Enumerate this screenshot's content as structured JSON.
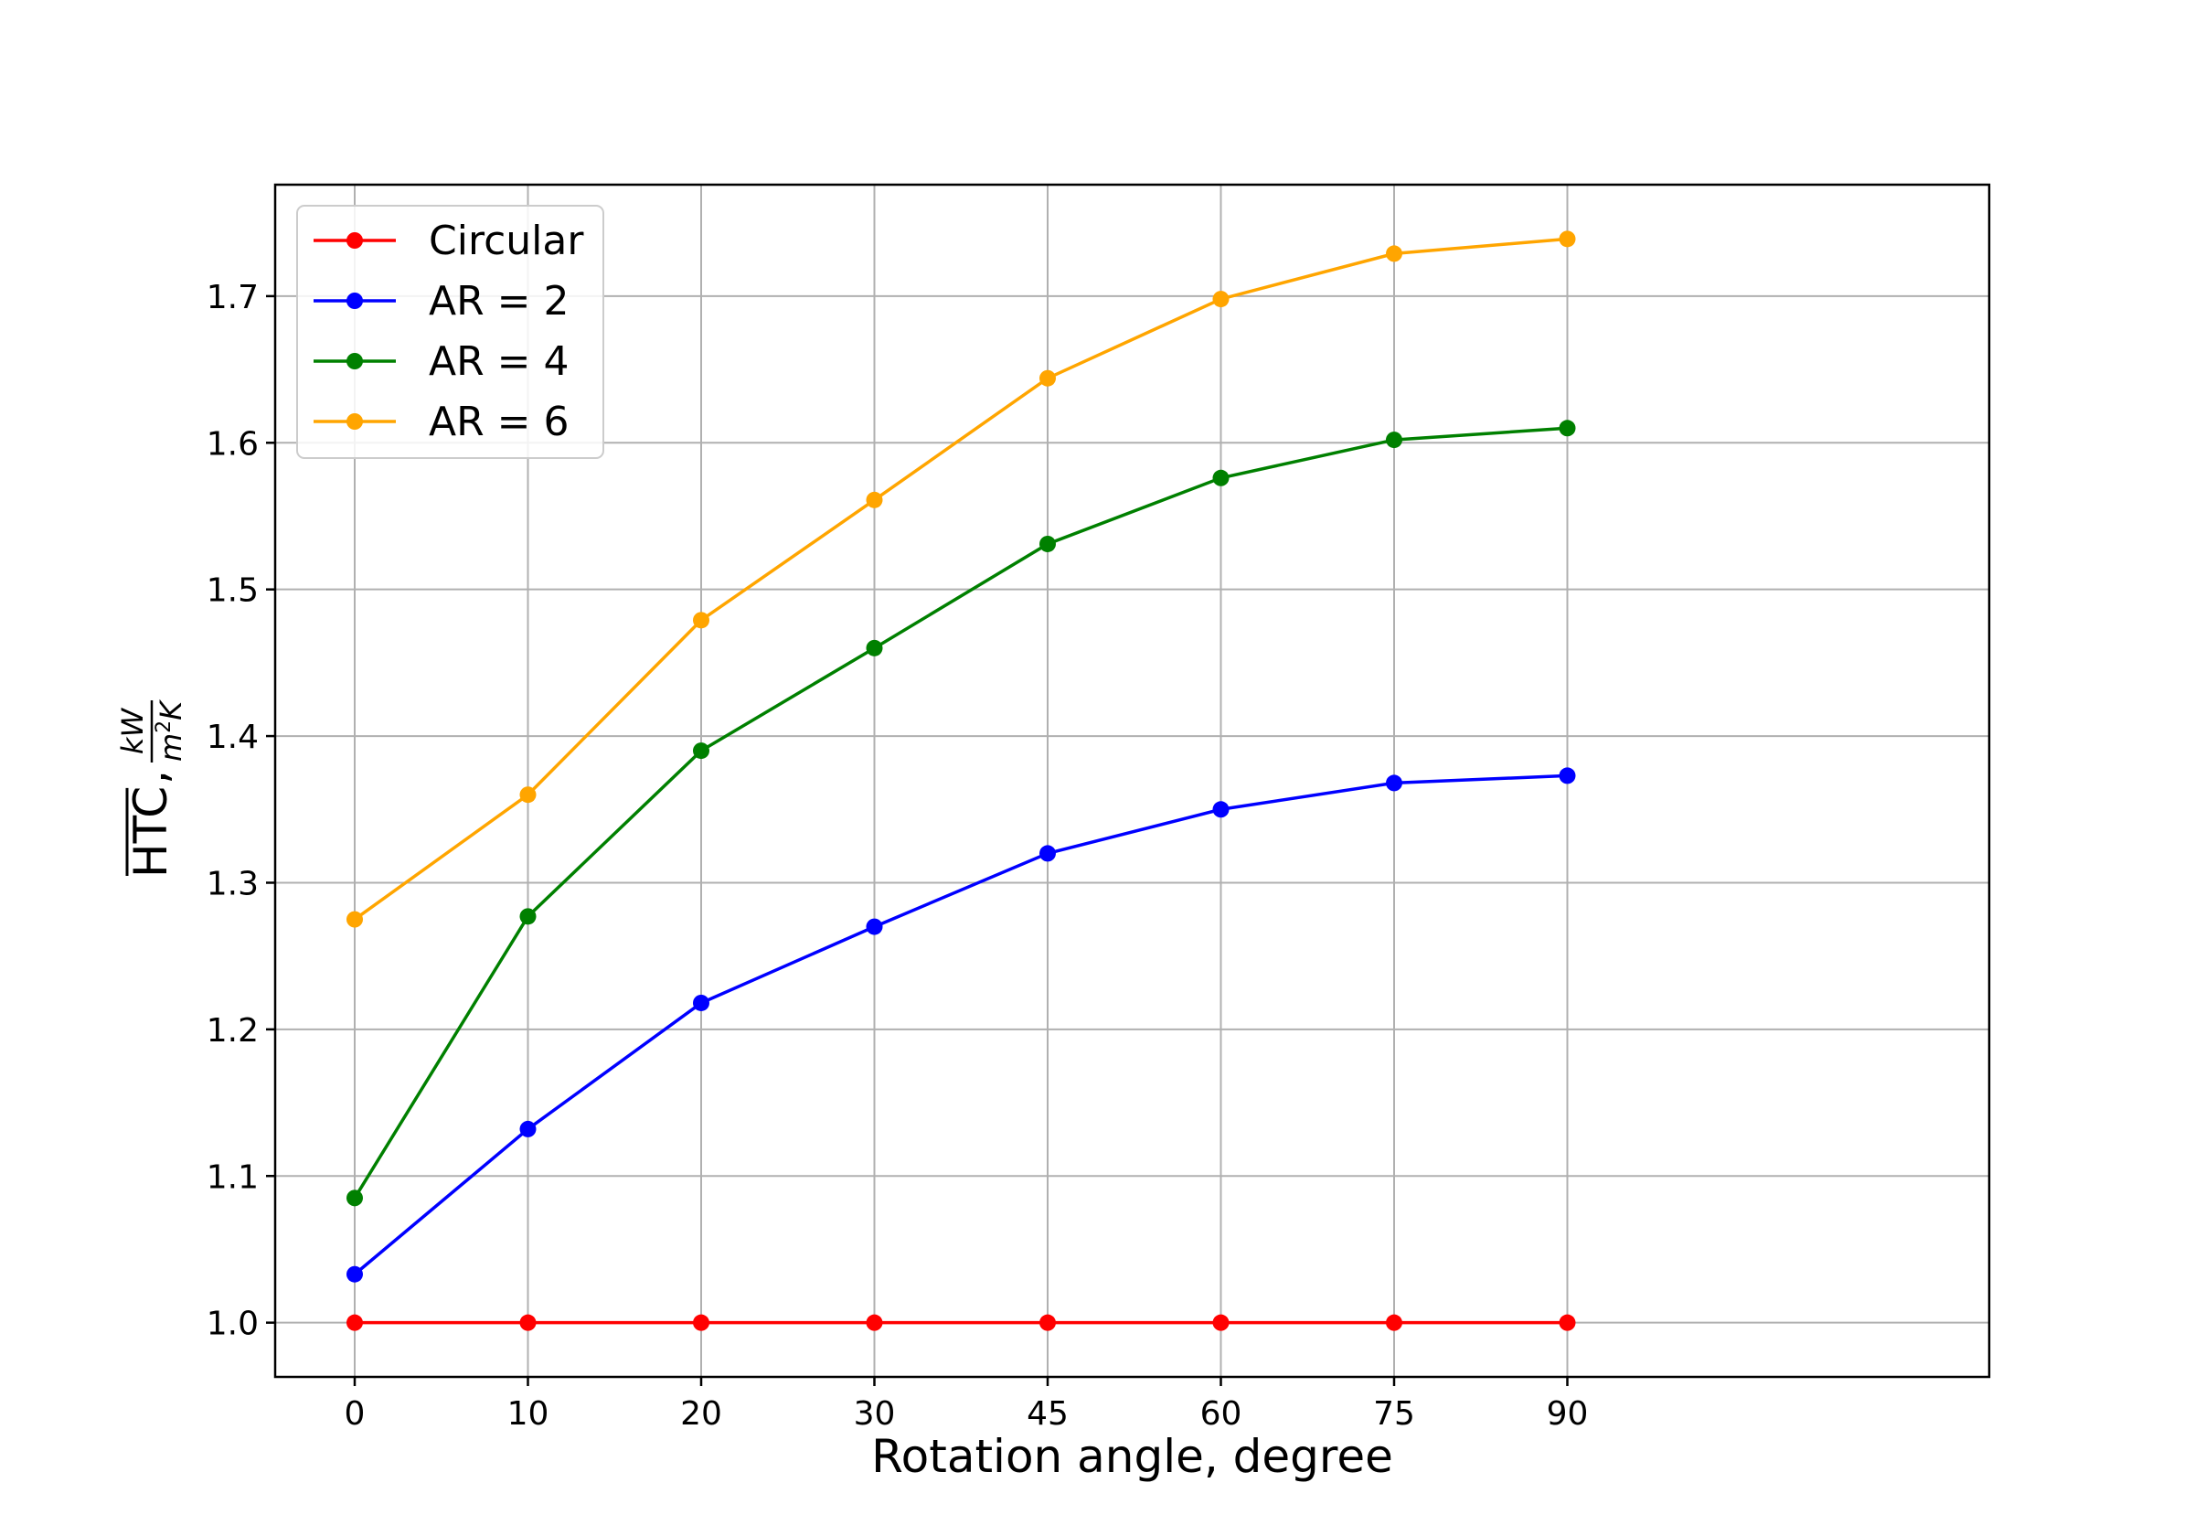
{
  "chart_data": {
    "type": "line",
    "x": [
      0,
      10,
      20,
      30,
      45,
      60,
      75,
      90
    ],
    "x_tick_labels": [
      "0",
      "10",
      "20",
      "30",
      "45",
      "60",
      "75",
      "90"
    ],
    "x_scale": "categorical-evenly-spaced",
    "xlabel": "Rotation angle, degree",
    "ylabel": {
      "quantity": "HTC",
      "quantity_overline": true,
      "separator": ",",
      "unit_numerator": "kW",
      "unit_denominator_base": "m",
      "unit_denominator_exponent": "2",
      "unit_denominator_suffix": "K"
    },
    "ylim": [
      0.963,
      1.776
    ],
    "y_ticks": [
      1.0,
      1.1,
      1.2,
      1.3,
      1.4,
      1.5,
      1.6,
      1.7
    ],
    "y_tick_labels": [
      "1.0",
      "1.1",
      "1.2",
      "1.3",
      "1.4",
      "1.5",
      "1.6",
      "1.7"
    ],
    "grid": true,
    "legend_position": "top-left",
    "series": [
      {
        "name": "Circular",
        "color": "#ff0000",
        "values": [
          1.0,
          1.0,
          1.0,
          1.0,
          1.0,
          1.0,
          1.0,
          1.0
        ]
      },
      {
        "name": "AR = 2",
        "color": "#0000ff",
        "values": [
          1.033,
          1.132,
          1.218,
          1.27,
          1.32,
          1.35,
          1.368,
          1.373
        ]
      },
      {
        "name": "AR = 4",
        "color": "#008000",
        "values": [
          1.085,
          1.277,
          1.39,
          1.46,
          1.531,
          1.576,
          1.602,
          1.61
        ]
      },
      {
        "name": "AR = 6",
        "color": "#ffa500",
        "values": [
          1.275,
          1.36,
          1.479,
          1.561,
          1.644,
          1.698,
          1.729,
          1.739
        ]
      }
    ]
  }
}
